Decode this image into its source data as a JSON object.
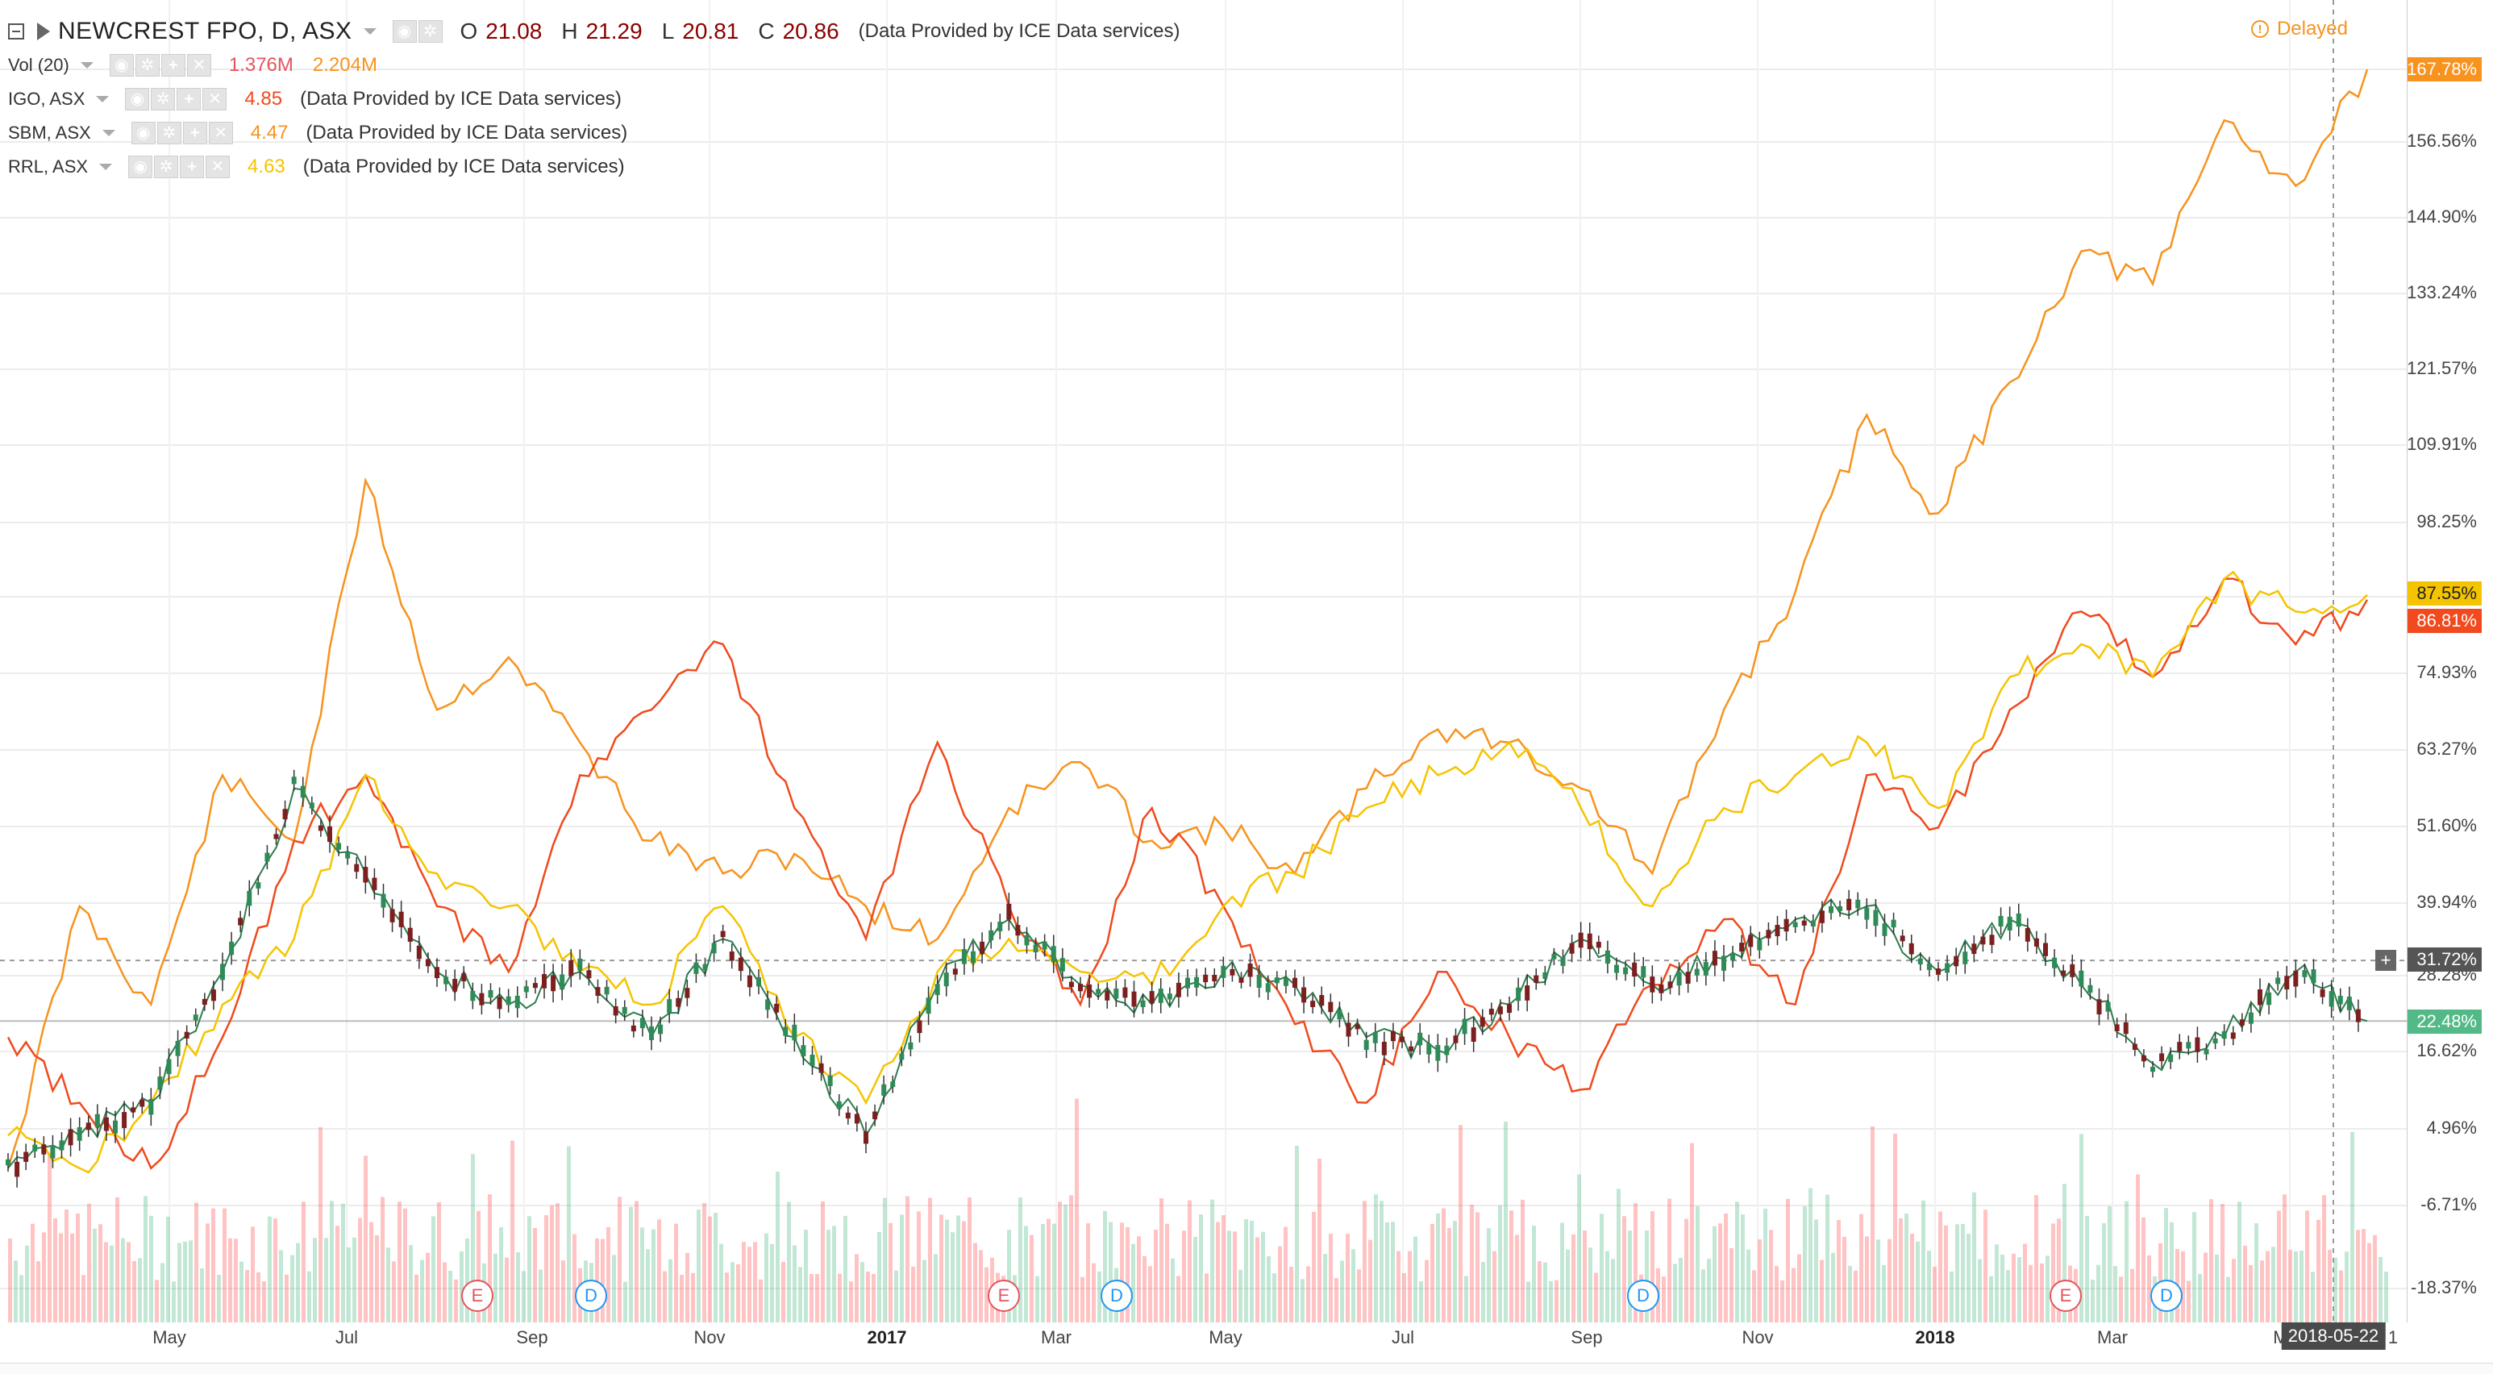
{
  "header": {
    "symbol_title": "NEWCREST FPO, D, ASX",
    "ohlc": [
      {
        "k": "O",
        "v": "21.08"
      },
      {
        "k": "H",
        "v": "21.29"
      },
      {
        "k": "L",
        "v": "20.81"
      },
      {
        "k": "C",
        "v": "20.86"
      }
    ],
    "provider": "(Data Provided by ICE Data services)",
    "delayed_label": "Delayed",
    "delayed_icon": "!"
  },
  "volume_study": {
    "name": "Vol (20)",
    "value1": "1.376M",
    "value2": "2.204M",
    "value1_color": "#e4555e",
    "value2_color": "#f7931e"
  },
  "compare_symbols": [
    {
      "name": "IGO, ASX",
      "value": "4.85",
      "color": "#f04a1e",
      "provider": "(Data Provided by ICE Data services)"
    },
    {
      "name": "SBM, ASX",
      "value": "4.47",
      "color": "#f7931e",
      "provider": "(Data Provided by ICE Data services)"
    },
    {
      "name": "RRL, ASX",
      "value": "4.63",
      "color": "#f5c400",
      "provider": "(Data Provided by ICE Data services)"
    }
  ],
  "tool_icons": [
    "eye-icon",
    "gear-icon",
    "plus-icon",
    "close-icon"
  ],
  "price_axis": {
    "labels": [
      "167.78%",
      "156.56%",
      "144.90%",
      "133.24%",
      "121.57%",
      "109.91%",
      "98.25%",
      "74.93%",
      "63.27%",
      "51.60%",
      "39.94%",
      "28.28%",
      "16.62%",
      "4.96%",
      "-6.71%",
      "-18.37%"
    ],
    "tags": [
      {
        "label": "167.78%",
        "color": "#f7931e",
        "value": 167.78
      },
      {
        "label": "87.55%",
        "color": "#f5c400",
        "value": 87.55
      },
      {
        "label": "86.81%",
        "color": "#f04a1e",
        "value": 86.81
      },
      {
        "label": "31.72%",
        "color": "#555555",
        "value": 31.72
      },
      {
        "label": "22.48%",
        "color": "#53b987",
        "value": 22.48
      }
    ],
    "crosshair_plus": "+"
  },
  "time_axis": {
    "labels": [
      {
        "text": "May",
        "bold": false
      },
      {
        "text": "Jul",
        "bold": false
      },
      {
        "text": "Sep",
        "bold": false
      },
      {
        "text": "Nov",
        "bold": false
      },
      {
        "text": "2017",
        "bold": true
      },
      {
        "text": "Mar",
        "bold": false
      },
      {
        "text": "May",
        "bold": false
      },
      {
        "text": "Jul",
        "bold": false
      },
      {
        "text": "Sep",
        "bold": false
      },
      {
        "text": "Nov",
        "bold": false
      },
      {
        "text": "2018",
        "bold": true
      },
      {
        "text": "Mar",
        "bold": false
      },
      {
        "text": "May",
        "bold": false
      }
    ],
    "cursor_date": "2018-05-22",
    "edge_text": "1"
  },
  "events": [
    {
      "type": "E",
      "label": "E"
    },
    {
      "type": "D",
      "label": "D"
    },
    {
      "type": "E",
      "label": "E"
    },
    {
      "type": "D",
      "label": "D"
    },
    {
      "type": "D",
      "label": "D"
    },
    {
      "type": "E",
      "label": "E"
    },
    {
      "type": "D",
      "label": "D"
    }
  ],
  "chart_data": {
    "type": "line",
    "ylim": [
      -18.37,
      167.78
    ],
    "series": [
      {
        "name": "SBM, ASX",
        "color": "#f7931e",
        "values": [
          0,
          40,
          25,
          60,
          50,
          105,
          70,
          78,
          65,
          50,
          45,
          48,
          40,
          35,
          55,
          62,
          50,
          52,
          45,
          58,
          67,
          65,
          58,
          45,
          70,
          88,
          115,
          100,
          120,
          140,
          135,
          160,
          150,
          167.78
        ]
      },
      {
        "name": "IGO, ASX",
        "color": "#f04a1e",
        "values": [
          20,
          10,
          0,
          20,
          50,
          60,
          40,
          30,
          60,
          70,
          80,
          55,
          35,
          65,
          40,
          25,
          55,
          40,
          22,
          10,
          30,
          20,
          12,
          28,
          38,
          25,
          60,
          52,
          70,
          85,
          75,
          90,
          80,
          86.81
        ]
      },
      {
        "name": "RRL, ASX",
        "color": "#f5c400",
        "values": [
          5,
          0,
          10,
          25,
          35,
          60,
          45,
          40,
          30,
          25,
          40,
          20,
          10,
          30,
          35,
          30,
          28,
          40,
          45,
          55,
          60,
          65,
          55,
          40,
          55,
          60,
          65,
          55,
          75,
          80,
          75,
          90,
          85,
          87.55
        ]
      },
      {
        "name": "NEWCREST FPO, D, ASX",
        "color": "#2e7d4f",
        "values": [
          0,
          5,
          10,
          30,
          58,
          45,
          30,
          25,
          30,
          20,
          35,
          20,
          5,
          28,
          38,
          28,
          25,
          30,
          28,
          20,
          18,
          25,
          35,
          28,
          32,
          38,
          40,
          30,
          38,
          28,
          16,
          20,
          30,
          22.48
        ]
      }
    ]
  }
}
